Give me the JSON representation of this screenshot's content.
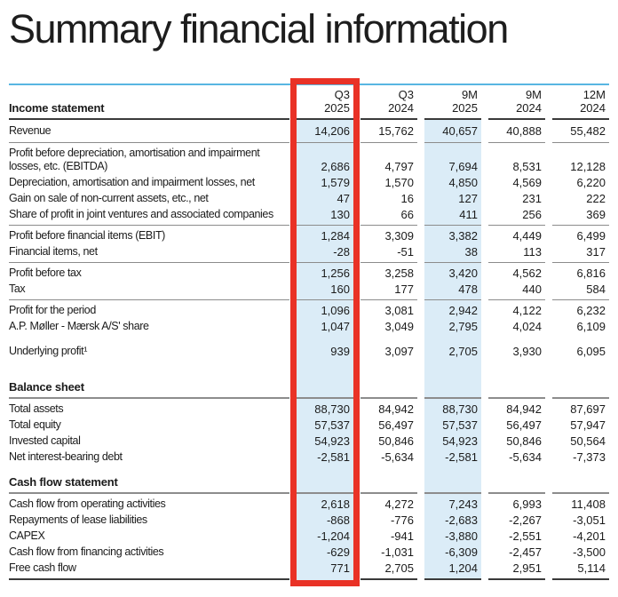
{
  "page_title": "Summary financial information",
  "colors": {
    "highlight_box": "#e93226",
    "column_band": "#dbecf7",
    "top_rule": "#58b6e2"
  },
  "highlight": {
    "highlighted_column": "Q3 2025",
    "shaded_columns": [
      "Q3 2025",
      "9M 2025"
    ]
  },
  "table": {
    "header": {
      "section_label": "Income statement",
      "columns": [
        {
          "period": "Q3",
          "year": "2025"
        },
        {
          "period": "Q3",
          "year": "2024"
        },
        {
          "period": "9M",
          "year": "2025"
        },
        {
          "period": "9M",
          "year": "2024"
        },
        {
          "period": "12M",
          "year": "2024"
        }
      ]
    },
    "income_statement": {
      "rows": [
        {
          "label": "Revenue",
          "values": [
            "14,206",
            "15,762",
            "40,657",
            "40,888",
            "55,482"
          ]
        },
        {
          "label": "Profit before depreciation, amortisation and impairment losses, etc. (EBITDA)",
          "values": [
            "2,686",
            "4,797",
            "7,694",
            "8,531",
            "12,128"
          ]
        },
        {
          "label": "Depreciation, amortisation and impairment losses, net",
          "values": [
            "1,579",
            "1,570",
            "4,850",
            "4,569",
            "6,220"
          ]
        },
        {
          "label": "Gain on sale of non-current assets, etc., net",
          "values": [
            "47",
            "16",
            "127",
            "231",
            "222"
          ]
        },
        {
          "label": "Share of profit in joint ventures and associated companies",
          "values": [
            "130",
            "66",
            "411",
            "256",
            "369"
          ]
        },
        {
          "label": "Profit before financial items (EBIT)",
          "values": [
            "1,284",
            "3,309",
            "3,382",
            "4,449",
            "6,499"
          ]
        },
        {
          "label": "Financial items, net",
          "values": [
            "-28",
            "-51",
            "38",
            "113",
            "317"
          ]
        },
        {
          "label": "Profit before tax",
          "values": [
            "1,256",
            "3,258",
            "3,420",
            "4,562",
            "6,816"
          ]
        },
        {
          "label": "Tax",
          "values": [
            "160",
            "177",
            "478",
            "440",
            "584"
          ]
        },
        {
          "label": "Profit for the period",
          "values": [
            "1,096",
            "3,081",
            "2,942",
            "4,122",
            "6,232"
          ]
        },
        {
          "label": "A.P. Møller - Mærsk A/S' share",
          "values": [
            "1,047",
            "3,049",
            "2,795",
            "4,024",
            "6,109"
          ]
        },
        {
          "label": "Underlying profit¹",
          "values": [
            "939",
            "3,097",
            "2,705",
            "3,930",
            "6,095"
          ]
        }
      ]
    },
    "balance_sheet": {
      "heading": "Balance sheet",
      "rows": [
        {
          "label": "Total assets",
          "values": [
            "88,730",
            "84,942",
            "88,730",
            "84,942",
            "87,697"
          ]
        },
        {
          "label": "Total equity",
          "values": [
            "57,537",
            "56,497",
            "57,537",
            "56,497",
            "57,947"
          ]
        },
        {
          "label": "Invested capital",
          "values": [
            "54,923",
            "50,846",
            "54,923",
            "50,846",
            "50,564"
          ]
        },
        {
          "label": "Net interest-bearing debt",
          "values": [
            "-2,581",
            "-5,634",
            "-2,581",
            "-5,634",
            "-7,373"
          ]
        }
      ]
    },
    "cash_flow": {
      "heading": "Cash flow statement",
      "rows": [
        {
          "label": "Cash flow from operating activities",
          "values": [
            "2,618",
            "4,272",
            "7,243",
            "6,993",
            "11,408"
          ]
        },
        {
          "label": "Repayments of lease liabilities",
          "values": [
            "-868",
            "-776",
            "-2,683",
            "-2,267",
            "-3,051"
          ]
        },
        {
          "label": "CAPEX",
          "values": [
            "-1,204",
            "-941",
            "-3,880",
            "-2,551",
            "-4,201"
          ]
        },
        {
          "label": "Cash flow from financing activities",
          "values": [
            "-629",
            "-1,031",
            "-6,309",
            "-2,457",
            "-3,500"
          ]
        },
        {
          "label": "Free cash flow",
          "values": [
            "771",
            "2,705",
            "1,204",
            "2,951",
            "5,114"
          ]
        }
      ]
    }
  }
}
